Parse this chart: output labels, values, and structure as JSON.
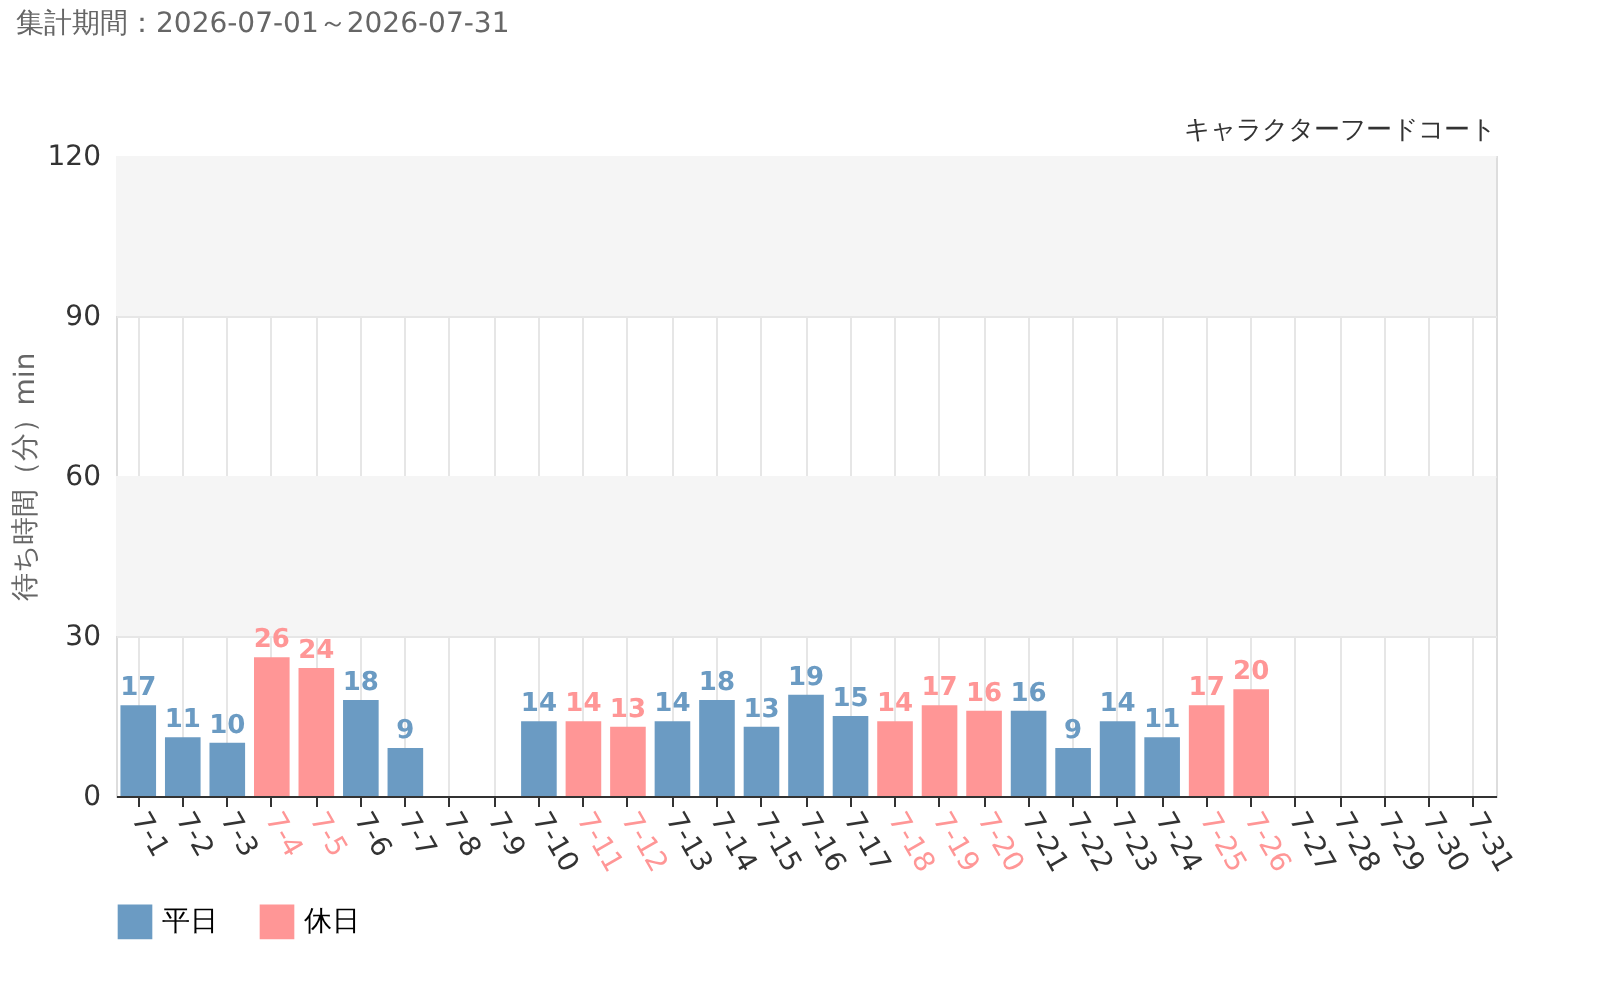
{
  "chart_data": {
    "type": "bar",
    "title": "集計期間：2026-07-01～2026-07-31",
    "subtitle": "キャラクターフードコート",
    "ylabel": "待ち時間（分）min",
    "categories": [
      "7-1",
      "7-2",
      "7-3",
      "7-4",
      "7-5",
      "7-6",
      "7-7",
      "7-8",
      "7-9",
      "7-10",
      "7-11",
      "7-12",
      "7-13",
      "7-14",
      "7-15",
      "7-16",
      "7-17",
      "7-18",
      "7-19",
      "7-20",
      "7-21",
      "7-22",
      "7-23",
      "7-24",
      "7-25",
      "7-26",
      "7-27",
      "7-28",
      "7-29",
      "7-30",
      "7-31"
    ],
    "series": [
      {
        "name": "平日",
        "color": "#6b9bc3",
        "values": [
          17,
          11,
          10,
          null,
          null,
          18,
          9,
          null,
          null,
          14,
          null,
          null,
          14,
          18,
          13,
          19,
          15,
          null,
          null,
          null,
          16,
          9,
          14,
          11,
          null,
          null,
          null,
          null,
          null,
          null,
          null
        ]
      },
      {
        "name": "休日",
        "color": "#ff9696",
        "values": [
          null,
          null,
          null,
          26,
          24,
          null,
          null,
          null,
          null,
          null,
          14,
          13,
          null,
          null,
          null,
          null,
          null,
          14,
          17,
          16,
          null,
          null,
          null,
          null,
          17,
          20,
          null,
          null,
          null,
          null,
          null
        ]
      }
    ],
    "ylim": [
      0,
      120
    ],
    "yticks": [
      0,
      30,
      60,
      90,
      120
    ],
    "bands": [
      {
        "axis": "y",
        "from": 30,
        "to": 60,
        "color": "#f5f5f5"
      },
      {
        "axis": "y",
        "from": 90,
        "to": 120,
        "color": "#f5f5f5"
      }
    ],
    "grid": true,
    "data_labels": true,
    "legend": "bottom left"
  }
}
